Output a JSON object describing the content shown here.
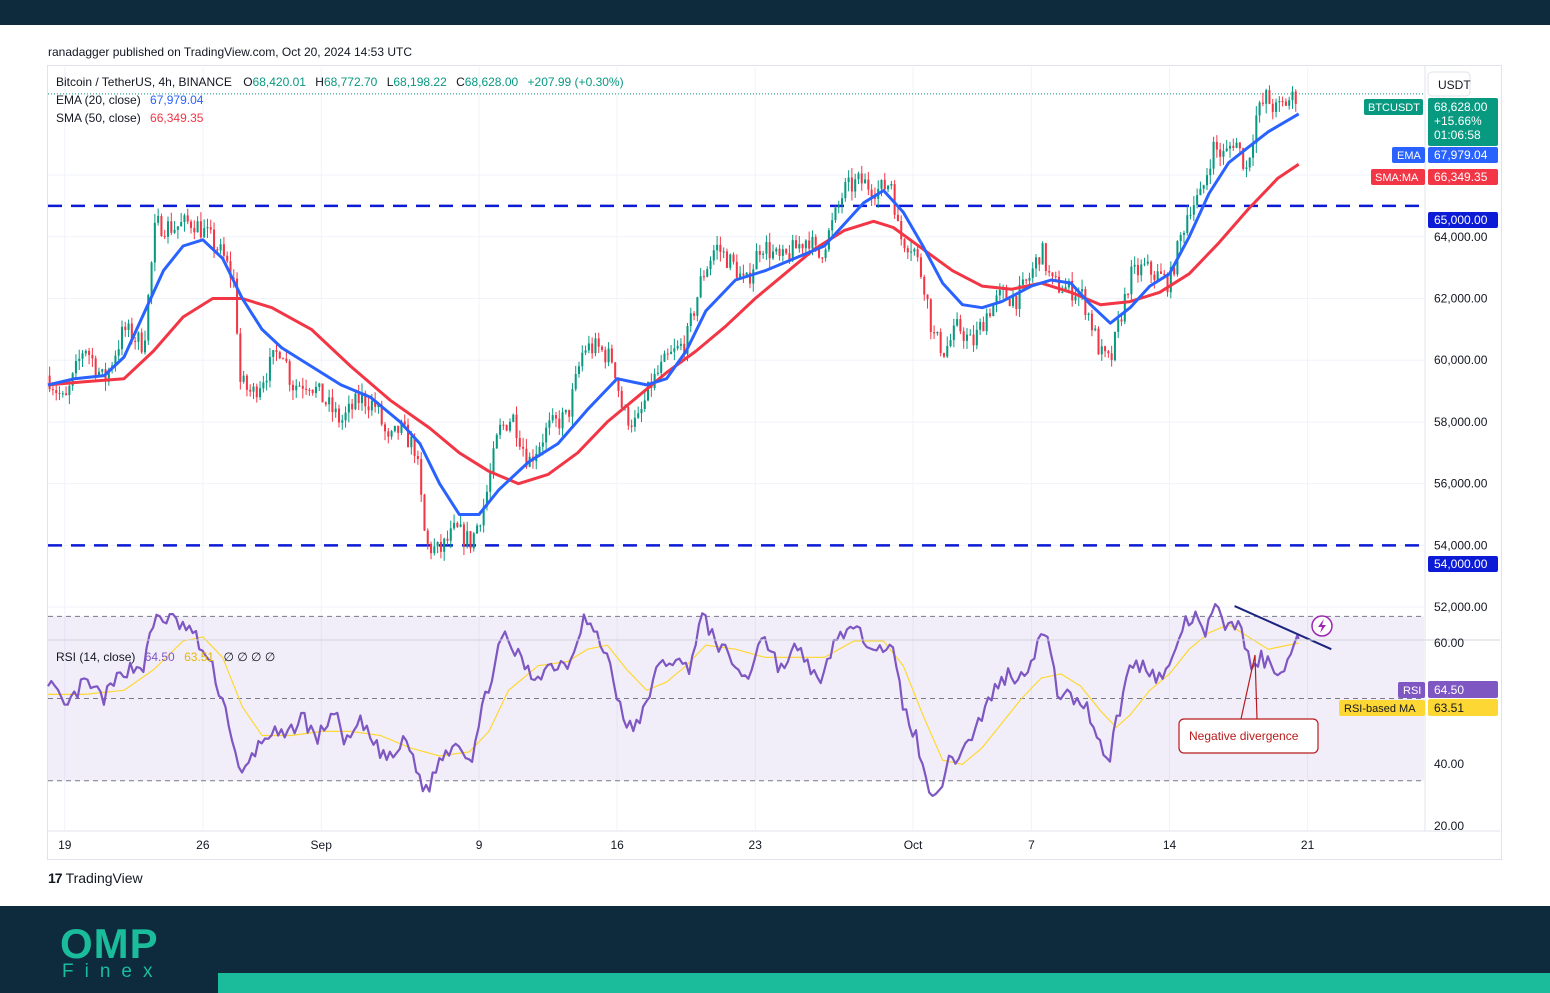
{
  "publisher": "ranadagger published on TradingView.com, Oct 20, 2024 14:53 UTC",
  "header": {
    "symbol": "Bitcoin / TetherUS, 4h, BINANCE",
    "o_label": "O",
    "o_value": "68,420.01",
    "h_label": "H",
    "h_value": "68,772.70",
    "l_label": "L",
    "l_value": "68,198.22",
    "c_label": "C",
    "c_value": "68,628.00",
    "change": "+207.99 (+0.30%)",
    "ema_label": "EMA (20, close)",
    "ema_value": "67,979.04",
    "sma_label": "SMA (50, close)",
    "sma_value": "66,349.35"
  },
  "currency": "USDT",
  "price_tag": {
    "ticker": "BTCUSDT",
    "price": "68,628.00",
    "change": "+15.66%",
    "countdown": "01:06:58"
  },
  "ema_tag": {
    "label": "EMA",
    "value": "67,979.04"
  },
  "sma_tag": {
    "label": "SMA:MA",
    "value": "66,349.35"
  },
  "levels": [
    {
      "value": 65000,
      "label": "65,000.00"
    },
    {
      "value": 54000,
      "label": "54,000.00"
    }
  ],
  "rsi": {
    "legend_label": "RSI (14, close)",
    "rsi_value": "64.50",
    "ma_value": "63.51",
    "ghosts": "∅ ∅ ∅ ∅",
    "tag_rsi_label": "RSI",
    "tag_ma_label": "RSI-based MA",
    "annotation": "Negative divergence",
    "upper": 70,
    "middle": 50,
    "lower": 30,
    "axis_labels": [
      "60.00",
      "40.00",
      "20.00"
    ]
  },
  "branding": {
    "tradingview": "TradingView",
    "company": "OMP",
    "company_sub": "Finex"
  },
  "colors": {
    "up": "#089981",
    "down": "#f23645",
    "ema": "#2962ff",
    "sma": "#f23645",
    "rsi": "#7e57c2",
    "rsi_ma": "#fdd835",
    "level": "#0c1bd6",
    "band": "#7e57c2",
    "divergence": "#1a237e",
    "annotation": "#b71c1c"
  },
  "chart_data": {
    "type": "candlestick",
    "timeframe": "4h",
    "ylim": [
      51000,
      69500
    ],
    "y_ticks": [
      52000,
      54000,
      56000,
      58000,
      60000,
      62000,
      64000,
      66000
    ],
    "y_tick_labels": [
      "52,000.00",
      "54,000.00",
      "56,000.00",
      "58,000.00",
      "60,000.00",
      "62,000.00",
      "64,000.00",
      "66,000.00"
    ],
    "x_ticks": [
      {
        "day": 1,
        "label": "19"
      },
      {
        "day": 8,
        "label": "26"
      },
      {
        "day": 14,
        "label": "Sep"
      },
      {
        "day": 22,
        "label": "9"
      },
      {
        "day": 29,
        "label": "16"
      },
      {
        "day": 36,
        "label": "23"
      },
      {
        "day": 44,
        "label": "Oct"
      },
      {
        "day": 50,
        "label": "7"
      },
      {
        "day": 57,
        "label": "14"
      },
      {
        "day": 64,
        "label": "21"
      }
    ],
    "x_range": [
      0.15,
      69.9
    ],
    "last_day": 63.55,
    "price_keypoints": [
      [
        0.15,
        59500
      ],
      [
        1.0,
        58600
      ],
      [
        2.0,
        60500
      ],
      [
        3.0,
        59300
      ],
      [
        4.0,
        61000
      ],
      [
        5.0,
        60500
      ],
      [
        5.6,
        64400
      ],
      [
        6.5,
        64300
      ],
      [
        7.5,
        64500
      ],
      [
        8.3,
        64000
      ],
      [
        9.0,
        63400
      ],
      [
        9.6,
        62500
      ],
      [
        9.9,
        59300
      ],
      [
        10.5,
        58900
      ],
      [
        11.3,
        59700
      ],
      [
        12.0,
        60500
      ],
      [
        12.5,
        59200
      ],
      [
        13.4,
        59300
      ],
      [
        14.4,
        58500
      ],
      [
        15.0,
        58000
      ],
      [
        16.0,
        58800
      ],
      [
        16.8,
        58500
      ],
      [
        17.4,
        57300
      ],
      [
        18.0,
        57800
      ],
      [
        18.8,
        57100
      ],
      [
        19.3,
        54000
      ],
      [
        20.0,
        53800
      ],
      [
        20.8,
        54500
      ],
      [
        21.6,
        54100
      ],
      [
        22.3,
        55400
      ],
      [
        23.0,
        57700
      ],
      [
        23.7,
        58200
      ],
      [
        24.5,
        56700
      ],
      [
        25.5,
        57800
      ],
      [
        26.5,
        58200
      ],
      [
        27.3,
        60400
      ],
      [
        28.0,
        60400
      ],
      [
        28.8,
        60000
      ],
      [
        29.3,
        58300
      ],
      [
        30.0,
        57900
      ],
      [
        30.7,
        59200
      ],
      [
        31.5,
        60000
      ],
      [
        32.5,
        60600
      ],
      [
        33.3,
        62700
      ],
      [
        34.0,
        63700
      ],
      [
        35.0,
        63000
      ],
      [
        35.5,
        62400
      ],
      [
        36.3,
        63800
      ],
      [
        37.3,
        63200
      ],
      [
        38.0,
        63600
      ],
      [
        38.7,
        64000
      ],
      [
        39.2,
        63300
      ],
      [
        39.8,
        64200
      ],
      [
        40.5,
        65500
      ],
      [
        41.3,
        65800
      ],
      [
        42.3,
        65500
      ],
      [
        42.9,
        65800
      ],
      [
        43.3,
        64000
      ],
      [
        44.0,
        63700
      ],
      [
        44.6,
        62400
      ],
      [
        45.0,
        60800
      ],
      [
        45.6,
        60300
      ],
      [
        46.3,
        61100
      ],
      [
        47.0,
        60500
      ],
      [
        47.8,
        61600
      ],
      [
        48.5,
        62100
      ],
      [
        49.3,
        62000
      ],
      [
        50.0,
        62800
      ],
      [
        50.5,
        63600
      ],
      [
        51.0,
        62500
      ],
      [
        51.8,
        62300
      ],
      [
        52.5,
        62200
      ],
      [
        53.0,
        61300
      ],
      [
        53.5,
        60200
      ],
      [
        54.0,
        59900
      ],
      [
        54.3,
        60800
      ],
      [
        55.0,
        62700
      ],
      [
        55.7,
        63000
      ],
      [
        56.5,
        62700
      ],
      [
        57.0,
        62500
      ],
      [
        57.5,
        63800
      ],
      [
        58.0,
        65000
      ],
      [
        58.6,
        65300
      ],
      [
        59.2,
        66900
      ],
      [
        59.8,
        66600
      ],
      [
        60.3,
        67200
      ],
      [
        60.9,
        66200
      ],
      [
        61.4,
        67900
      ],
      [
        61.9,
        68500
      ],
      [
        62.4,
        68100
      ],
      [
        63.0,
        68400
      ],
      [
        63.55,
        68628
      ]
    ],
    "ema_keypoints": [
      [
        0.15,
        59200
      ],
      [
        1.5,
        59400
      ],
      [
        3.0,
        59500
      ],
      [
        4.0,
        60100
      ],
      [
        5.0,
        61500
      ],
      [
        6.0,
        62900
      ],
      [
        7.0,
        63700
      ],
      [
        8.0,
        63900
      ],
      [
        9.0,
        63300
      ],
      [
        10.0,
        62000
      ],
      [
        11.0,
        61000
      ],
      [
        12.0,
        60400
      ],
      [
        13.5,
        59800
      ],
      [
        15.0,
        59200
      ],
      [
        16.5,
        58800
      ],
      [
        18.0,
        58000
      ],
      [
        19.0,
        57300
      ],
      [
        20.0,
        56000
      ],
      [
        21.0,
        55000
      ],
      [
        22.0,
        55000
      ],
      [
        23.0,
        55800
      ],
      [
        24.5,
        56700
      ],
      [
        26.0,
        57300
      ],
      [
        27.5,
        58400
      ],
      [
        29.0,
        59400
      ],
      [
        30.5,
        59200
      ],
      [
        31.5,
        59400
      ],
      [
        32.5,
        60300
      ],
      [
        33.5,
        61600
      ],
      [
        35.0,
        62600
      ],
      [
        36.5,
        62900
      ],
      [
        38.0,
        63300
      ],
      [
        39.5,
        63700
      ],
      [
        40.5,
        64400
      ],
      [
        41.5,
        65100
      ],
      [
        42.5,
        65500
      ],
      [
        43.5,
        64800
      ],
      [
        44.5,
        63700
      ],
      [
        45.5,
        62500
      ],
      [
        46.5,
        61800
      ],
      [
        47.5,
        61700
      ],
      [
        48.5,
        61900
      ],
      [
        50.0,
        62400
      ],
      [
        51.0,
        62600
      ],
      [
        52.0,
        62500
      ],
      [
        53.0,
        61800
      ],
      [
        54.0,
        61200
      ],
      [
        55.0,
        61700
      ],
      [
        56.0,
        62400
      ],
      [
        57.0,
        62800
      ],
      [
        58.0,
        64000
      ],
      [
        59.0,
        65400
      ],
      [
        60.0,
        66400
      ],
      [
        61.0,
        66900
      ],
      [
        62.0,
        67400
      ],
      [
        63.55,
        67979
      ]
    ],
    "sma_keypoints": [
      [
        0.15,
        59200
      ],
      [
        2.0,
        59300
      ],
      [
        4.0,
        59400
      ],
      [
        5.5,
        60300
      ],
      [
        7.0,
        61400
      ],
      [
        8.5,
        62000
      ],
      [
        10.0,
        62000
      ],
      [
        11.5,
        61700
      ],
      [
        13.5,
        61000
      ],
      [
        15.5,
        59800
      ],
      [
        17.5,
        58700
      ],
      [
        19.5,
        57800
      ],
      [
        21.0,
        57000
      ],
      [
        22.5,
        56400
      ],
      [
        24.0,
        56000
      ],
      [
        25.5,
        56300
      ],
      [
        27.0,
        57000
      ],
      [
        28.5,
        58000
      ],
      [
        30.0,
        58800
      ],
      [
        31.5,
        59600
      ],
      [
        33.0,
        60300
      ],
      [
        34.5,
        61100
      ],
      [
        36.0,
        62000
      ],
      [
        37.5,
        62800
      ],
      [
        39.0,
        63600
      ],
      [
        40.5,
        64200
      ],
      [
        42.0,
        64500
      ],
      [
        43.0,
        64300
      ],
      [
        44.5,
        63600
      ],
      [
        46.0,
        62900
      ],
      [
        47.5,
        62400
      ],
      [
        49.0,
        62300
      ],
      [
        50.5,
        62500
      ],
      [
        52.0,
        62200
      ],
      [
        53.5,
        61800
      ],
      [
        55.0,
        61900
      ],
      [
        56.5,
        62200
      ],
      [
        58.0,
        62800
      ],
      [
        59.5,
        63800
      ],
      [
        61.0,
        64900
      ],
      [
        62.5,
        65900
      ],
      [
        63.55,
        66349
      ]
    ],
    "rsi_ylim": [
      18,
      64
    ],
    "rsi_keypoints": [
      [
        0.15,
        55
      ],
      [
        1.0,
        47
      ],
      [
        2.0,
        54
      ],
      [
        3.0,
        50
      ],
      [
        4.0,
        57
      ],
      [
        5.0,
        58
      ],
      [
        5.6,
        70
      ],
      [
        6.5,
        69
      ],
      [
        7.5,
        66
      ],
      [
        8.5,
        57
      ],
      [
        9.3,
        45
      ],
      [
        9.9,
        30
      ],
      [
        10.6,
        37
      ],
      [
        11.4,
        42
      ],
      [
        12.2,
        40
      ],
      [
        13.0,
        46
      ],
      [
        13.8,
        40
      ],
      [
        14.6,
        47
      ],
      [
        15.3,
        39
      ],
      [
        16.0,
        44
      ],
      [
        16.8,
        38
      ],
      [
        17.5,
        35
      ],
      [
        18.3,
        40
      ],
      [
        19.3,
        27
      ],
      [
        20.1,
        36
      ],
      [
        20.9,
        40
      ],
      [
        21.6,
        35
      ],
      [
        22.4,
        52
      ],
      [
        23.2,
        65
      ],
      [
        23.9,
        61
      ],
      [
        24.7,
        55
      ],
      [
        25.6,
        58
      ],
      [
        26.6,
        59
      ],
      [
        27.3,
        70
      ],
      [
        28.1,
        64
      ],
      [
        28.7,
        58
      ],
      [
        29.3,
        44
      ],
      [
        30.1,
        43
      ],
      [
        30.9,
        56
      ],
      [
        31.7,
        60
      ],
      [
        32.6,
        57
      ],
      [
        33.3,
        70
      ],
      [
        34.0,
        64
      ],
      [
        35.0,
        58
      ],
      [
        35.6,
        54
      ],
      [
        36.3,
        66
      ],
      [
        37.3,
        57
      ],
      [
        38.0,
        62
      ],
      [
        38.7,
        59
      ],
      [
        39.3,
        52
      ],
      [
        39.9,
        63
      ],
      [
        40.6,
        67
      ],
      [
        41.4,
        65
      ],
      [
        42.4,
        63
      ],
      [
        43.0,
        61
      ],
      [
        43.5,
        48
      ],
      [
        44.2,
        40
      ],
      [
        44.6,
        30
      ],
      [
        45.2,
        27
      ],
      [
        45.8,
        34
      ],
      [
        46.6,
        38
      ],
      [
        47.3,
        44
      ],
      [
        48.1,
        52
      ],
      [
        48.8,
        56
      ],
      [
        49.5,
        55
      ],
      [
        50.2,
        62
      ],
      [
        50.7,
        67
      ],
      [
        51.3,
        52
      ],
      [
        52.0,
        50
      ],
      [
        52.7,
        49
      ],
      [
        53.3,
        42
      ],
      [
        53.9,
        34
      ],
      [
        54.2,
        42
      ],
      [
        55.0,
        58
      ],
      [
        55.8,
        58
      ],
      [
        56.5,
        55
      ],
      [
        57.0,
        57
      ],
      [
        57.6,
        67
      ],
      [
        58.2,
        70
      ],
      [
        58.8,
        66
      ],
      [
        59.4,
        72
      ],
      [
        60.0,
        67
      ],
      [
        60.6,
        69
      ],
      [
        61.1,
        57
      ],
      [
        61.7,
        60
      ],
      [
        62.3,
        57
      ],
      [
        62.9,
        58
      ],
      [
        63.55,
        64.5
      ]
    ],
    "rsi_ma_keypoints": [
      [
        0.15,
        51
      ],
      [
        2.0,
        51
      ],
      [
        4.0,
        52
      ],
      [
        5.5,
        57
      ],
      [
        7.0,
        64
      ],
      [
        8.0,
        65
      ],
      [
        9.0,
        60
      ],
      [
        10.0,
        48
      ],
      [
        11.0,
        41
      ],
      [
        12.5,
        41
      ],
      [
        14.0,
        42
      ],
      [
        15.5,
        42
      ],
      [
        17.0,
        41
      ],
      [
        18.5,
        38
      ],
      [
        20.0,
        36
      ],
      [
        21.5,
        37
      ],
      [
        22.5,
        42
      ],
      [
        23.5,
        52
      ],
      [
        25.0,
        58
      ],
      [
        26.5,
        59
      ],
      [
        27.5,
        62
      ],
      [
        28.5,
        63
      ],
      [
        29.5,
        57
      ],
      [
        30.5,
        52
      ],
      [
        31.5,
        54
      ],
      [
        32.5,
        58
      ],
      [
        33.5,
        63
      ],
      [
        35.0,
        62
      ],
      [
        36.5,
        60
      ],
      [
        38.0,
        60
      ],
      [
        39.5,
        60
      ],
      [
        41.0,
        64
      ],
      [
        42.5,
        64
      ],
      [
        43.5,
        58
      ],
      [
        44.5,
        46
      ],
      [
        45.5,
        35
      ],
      [
        46.5,
        34
      ],
      [
        47.5,
        38
      ],
      [
        48.5,
        44
      ],
      [
        49.5,
        50
      ],
      [
        50.5,
        55
      ],
      [
        51.5,
        56
      ],
      [
        52.5,
        53
      ],
      [
        53.5,
        47
      ],
      [
        54.3,
        43
      ],
      [
        55.0,
        46
      ],
      [
        56.0,
        52
      ],
      [
        57.0,
        56
      ],
      [
        58.0,
        62
      ],
      [
        59.0,
        66
      ],
      [
        60.0,
        68
      ],
      [
        61.0,
        65
      ],
      [
        62.0,
        62
      ],
      [
        63.55,
        63.51
      ]
    ],
    "divergence_line": [
      [
        60.3,
        72.5
      ],
      [
        65.2,
        62
      ]
    ],
    "last_rsi": 64.5,
    "last_rsi_ma": 63.51
  }
}
